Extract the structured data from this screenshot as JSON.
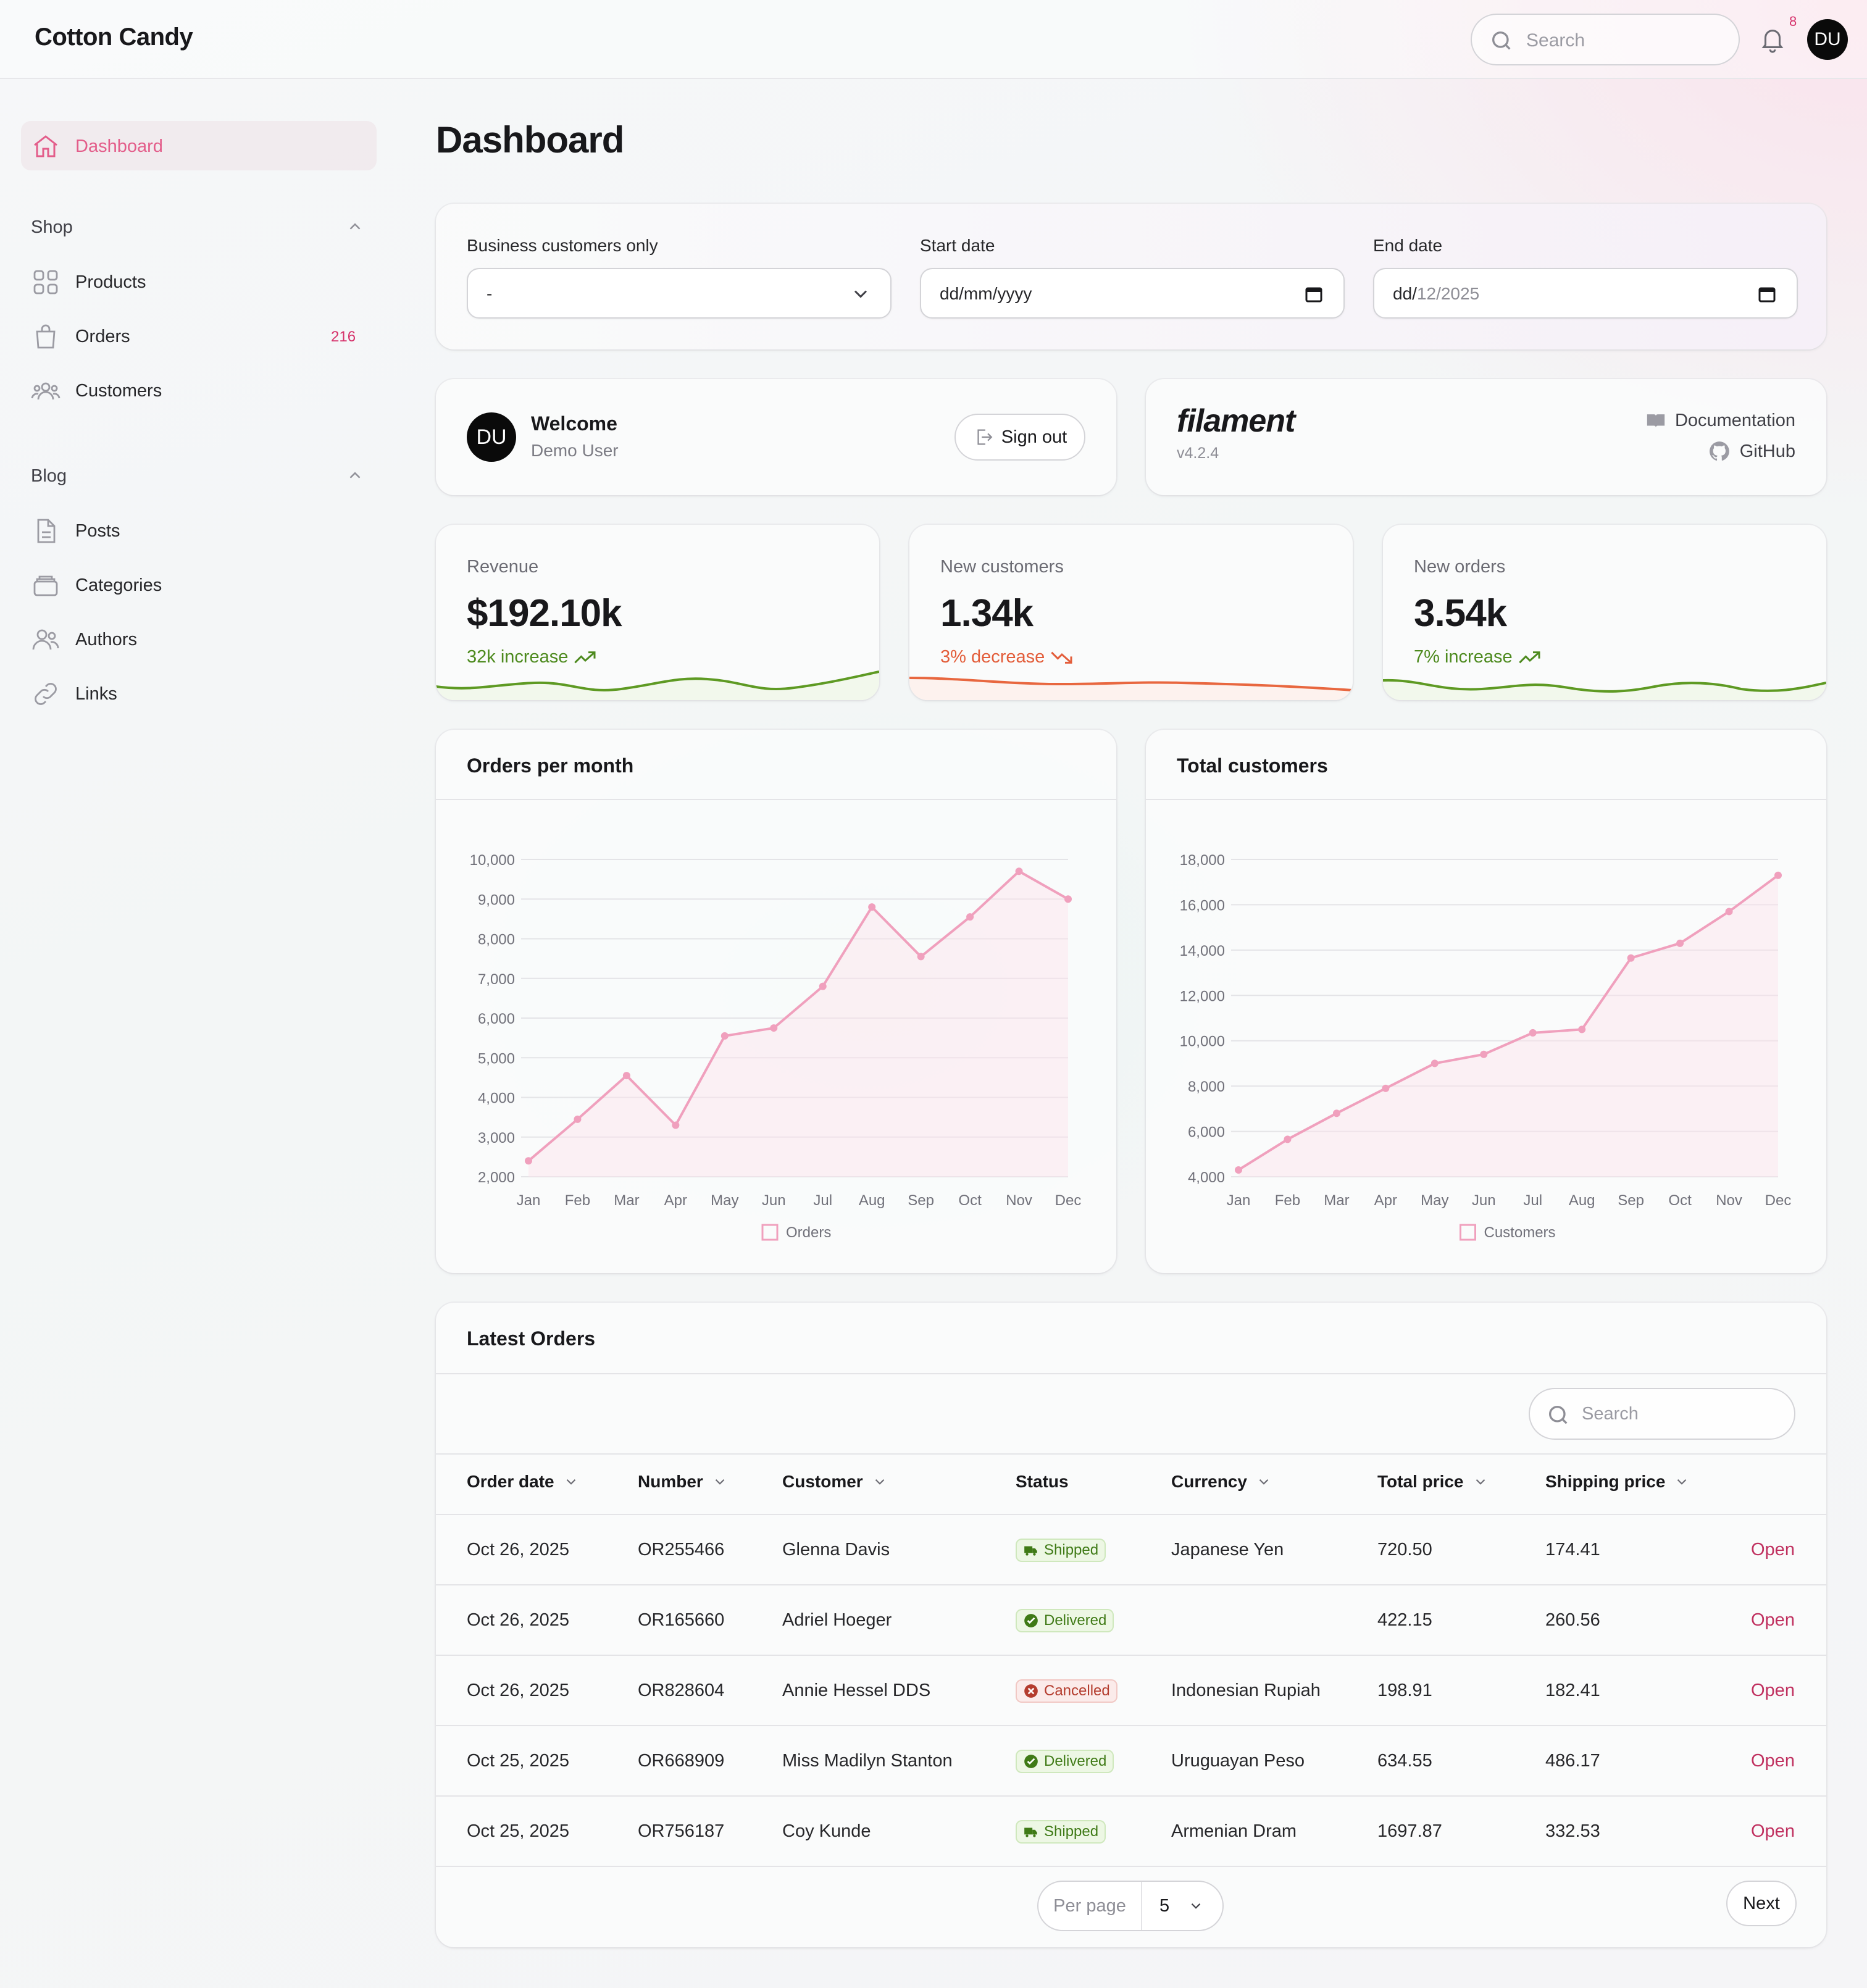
{
  "app": {
    "title": "Cotton Candy"
  },
  "topbar": {
    "search_placeholder": "Search",
    "notification_count": "8",
    "avatar_initials": "DU"
  },
  "sidebar": {
    "dashboard_label": "Dashboard",
    "shop_group": "Shop",
    "shop_items": [
      {
        "label": "Products"
      },
      {
        "label": "Orders",
        "badge": "216"
      },
      {
        "label": "Customers"
      }
    ],
    "blog_group": "Blog",
    "blog_items": [
      {
        "label": "Posts"
      },
      {
        "label": "Categories"
      },
      {
        "label": "Authors"
      },
      {
        "label": "Links"
      }
    ]
  },
  "page": {
    "title": "Dashboard"
  },
  "filters": {
    "business_label": "Business customers only",
    "business_value": "-",
    "start_label": "Start date",
    "start_value": "dd/mm/yyyy",
    "end_label": "End date",
    "end_value_prefix": "dd/",
    "end_value_rest": "12/2025"
  },
  "welcome": {
    "title": "Welcome",
    "user": "Demo User",
    "avatar": "DU",
    "signout": "Sign out"
  },
  "filament": {
    "logo": "filament",
    "version": "v4.2.4",
    "docs": "Documentation",
    "github": "GitHub"
  },
  "stats": [
    {
      "label": "Revenue",
      "value": "$192.10k",
      "trend": "32k increase",
      "color": "#4d8a1e"
    },
    {
      "label": "New customers",
      "value": "1.34k",
      "trend": "3% decrease",
      "color": "#e35d3a"
    },
    {
      "label": "New orders",
      "value": "3.54k",
      "trend": "7% increase",
      "color": "#4d8a1e"
    }
  ],
  "charts": {
    "orders_title": "Orders per month",
    "customers_title": "Total customers"
  },
  "chart_data": [
    {
      "type": "line",
      "title": "Orders per month",
      "categories": [
        "Jan",
        "Feb",
        "Mar",
        "Apr",
        "May",
        "Jun",
        "Jul",
        "Aug",
        "Sep",
        "Oct",
        "Nov",
        "Dec"
      ],
      "series": [
        {
          "name": "Orders",
          "values": [
            2400,
            3450,
            4550,
            3300,
            5550,
            5750,
            6800,
            8800,
            7550,
            8550,
            9700,
            9000
          ]
        }
      ],
      "ylim": [
        2000,
        10000
      ],
      "yticks": [
        "10,000",
        "9,000",
        "8,000",
        "7,000",
        "6,000",
        "5,000",
        "4,000",
        "3,000",
        "2,000"
      ],
      "color": "#f0a0bd"
    },
    {
      "type": "line",
      "title": "Total customers",
      "categories": [
        "Jan",
        "Feb",
        "Mar",
        "Apr",
        "May",
        "Jun",
        "Jul",
        "Aug",
        "Sep",
        "Oct",
        "Nov",
        "Dec"
      ],
      "series": [
        {
          "name": "Customers",
          "values": [
            4300,
            5650,
            6800,
            7900,
            9000,
            9400,
            10350,
            10500,
            13650,
            14300,
            15700,
            17300
          ]
        }
      ],
      "ylim": [
        4000,
        18000
      ],
      "yticks": [
        "18,000",
        "16,000",
        "14,000",
        "12,000",
        "10,000",
        "8,000",
        "6,000",
        "4,000"
      ],
      "color": "#f0a0bd"
    }
  ],
  "orders_table": {
    "title": "Latest Orders",
    "search_placeholder": "Search",
    "columns": [
      "Order date",
      "Number",
      "Customer",
      "Status",
      "Currency",
      "Total price",
      "Shipping price"
    ],
    "rows": [
      {
        "date": "Oct 26, 2025",
        "number": "OR255466",
        "customer": "Glenna Davis",
        "status": "Shipped",
        "currency": "Japanese Yen",
        "total": "720.50",
        "shipping": "174.41",
        "action": "Open"
      },
      {
        "date": "Oct 26, 2025",
        "number": "OR165660",
        "customer": "Adriel Hoeger",
        "status": "Delivered",
        "currency": "",
        "total": "422.15",
        "shipping": "260.56",
        "action": "Open"
      },
      {
        "date": "Oct 26, 2025",
        "number": "OR828604",
        "customer": "Annie Hessel DDS",
        "status": "Cancelled",
        "currency": "Indonesian Rupiah",
        "total": "198.91",
        "shipping": "182.41",
        "action": "Open"
      },
      {
        "date": "Oct 25, 2025",
        "number": "OR668909",
        "customer": "Miss Madilyn Stanton",
        "status": "Delivered",
        "currency": "Uruguayan Peso",
        "total": "634.55",
        "shipping": "486.17",
        "action": "Open"
      },
      {
        "date": "Oct 25, 2025",
        "number": "OR756187",
        "customer": "Coy Kunde",
        "status": "Shipped",
        "currency": "Armenian Dram",
        "total": "1697.87",
        "shipping": "332.53",
        "action": "Open"
      }
    ],
    "per_page_label": "Per page",
    "per_page_value": "5",
    "next": "Next"
  }
}
